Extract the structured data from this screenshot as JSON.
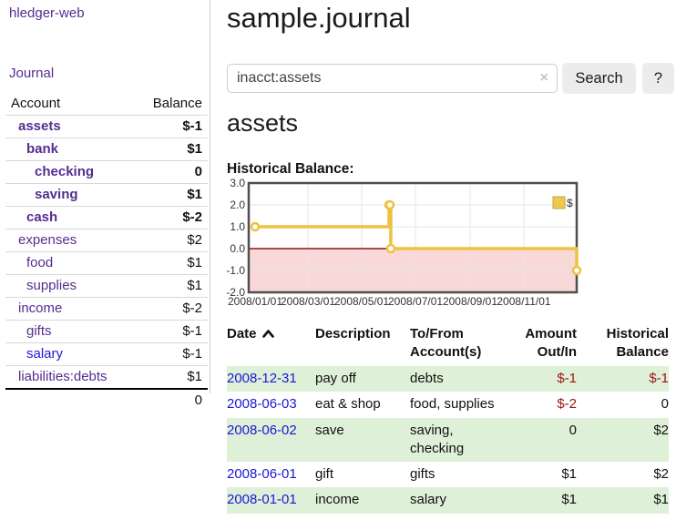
{
  "app": {
    "brand": "hledger-web"
  },
  "colors": {
    "link_purple": "#552d90",
    "link_blue": "#1b18d8",
    "negative_strong": "#9e1414",
    "negative_soft": "#c08483",
    "row_stripe_green": "#dff0d8",
    "chart_line_gold": "#edc240",
    "chart_negative_region": "#f9d8d8",
    "chart_zero_line": "#8e1212"
  },
  "sidebar": {
    "nav_journal": "Journal",
    "accounts_table": {
      "col_account": "Account",
      "col_balance": "Balance",
      "rows": [
        {
          "name": "assets",
          "depth": 1,
          "bold": true,
          "link_color": "purple",
          "balance": "$-1",
          "balance_class": "neg-strong"
        },
        {
          "name": "bank",
          "depth": 2,
          "bold": true,
          "link_color": "purple",
          "balance": "$1",
          "balance_class": "pos"
        },
        {
          "name": "checking",
          "depth": 3,
          "bold": true,
          "link_color": "purple",
          "balance": "0",
          "balance_class": "pos"
        },
        {
          "name": "saving",
          "depth": 3,
          "bold": true,
          "link_color": "purple",
          "balance": "$1",
          "balance_class": "pos"
        },
        {
          "name": "cash",
          "depth": 2,
          "bold": true,
          "link_color": "purple",
          "balance": "$-2",
          "balance_class": "neg-strong"
        },
        {
          "name": "expenses",
          "depth": 1,
          "bold": false,
          "link_color": "purple",
          "balance": "$2",
          "balance_class": "pos"
        },
        {
          "name": "food",
          "depth": 2,
          "bold": false,
          "link_color": "purple",
          "balance": "$1",
          "balance_class": "pos"
        },
        {
          "name": "supplies",
          "depth": 2,
          "bold": false,
          "link_color": "purple",
          "balance": "$1",
          "balance_class": "pos"
        },
        {
          "name": "income",
          "depth": 1,
          "bold": false,
          "link_color": "purple",
          "balance": "$-2",
          "balance_class": "neg-soft"
        },
        {
          "name": "gifts",
          "depth": 2,
          "bold": false,
          "link_color": "purple",
          "balance": "$-1",
          "balance_class": "neg-soft"
        },
        {
          "name": "salary",
          "depth": 2,
          "bold": false,
          "link_color": "blue",
          "balance": "$-1",
          "balance_class": "neg-soft"
        },
        {
          "name": "liabilities:debts",
          "depth": 1,
          "bold": false,
          "link_color": "purple",
          "balance": "$1",
          "balance_class": "pos"
        }
      ],
      "total": "0"
    }
  },
  "header": {
    "title": "sample.journal"
  },
  "search": {
    "value": "inacct:assets",
    "clear_icon": "×",
    "button_label": "Search",
    "help_label": "?"
  },
  "account_page": {
    "title": "assets",
    "chart_label": "Historical Balance:"
  },
  "chart_data": {
    "type": "line",
    "step": true,
    "title": "Historical Balance:",
    "series": [
      {
        "name": "$",
        "color": "#edc240",
        "points": [
          [
            "2008-01-01",
            1
          ],
          [
            "2008-06-01",
            2
          ],
          [
            "2008-06-02",
            2
          ],
          [
            "2008-06-03",
            0
          ],
          [
            "2008-12-31",
            -1
          ]
        ]
      }
    ],
    "x_ticks": [
      "2008/01/01",
      "2008/03/01",
      "2008/05/01",
      "2008/07/01",
      "2008/09/01",
      "2008/11/01"
    ],
    "y_ticks": [
      "3.0",
      "2.0",
      "1.0",
      "0.0",
      "-1.0",
      "-2.0"
    ],
    "ylim": [
      -2,
      3
    ],
    "xlim": [
      "2008-01-01",
      "2009-01-01"
    ],
    "grid": true,
    "negative_region_color": "#f9d8d8",
    "zero_line_color": "#8e1212",
    "legend": {
      "label": "$",
      "position": "top-right"
    }
  },
  "register": {
    "columns": [
      "Date",
      "Description",
      "To/From Account(s)",
      "Amount Out/In",
      "Historical Balance"
    ],
    "rows": [
      {
        "date": "2008-12-31",
        "description": "pay off",
        "accounts": "debts",
        "amount": "$-1",
        "amount_negative": true,
        "balance": "$-1",
        "balance_negative": true,
        "stripe": true
      },
      {
        "date": "2008-06-03",
        "description": "eat & shop",
        "accounts": "food, supplies",
        "amount": "$-2",
        "amount_negative": true,
        "balance": "0",
        "balance_negative": false,
        "stripe": false
      },
      {
        "date": "2008-06-02",
        "description": "save",
        "accounts": "saving, checking",
        "amount": "0",
        "amount_negative": false,
        "balance": "$2",
        "balance_negative": false,
        "stripe": true
      },
      {
        "date": "2008-06-01",
        "description": "gift",
        "accounts": "gifts",
        "amount": "$1",
        "amount_negative": false,
        "balance": "$2",
        "balance_negative": false,
        "stripe": false
      },
      {
        "date": "2008-01-01",
        "description": "income",
        "accounts": "salary",
        "amount": "$1",
        "amount_negative": false,
        "balance": "$1",
        "balance_negative": false,
        "stripe": true
      }
    ]
  }
}
